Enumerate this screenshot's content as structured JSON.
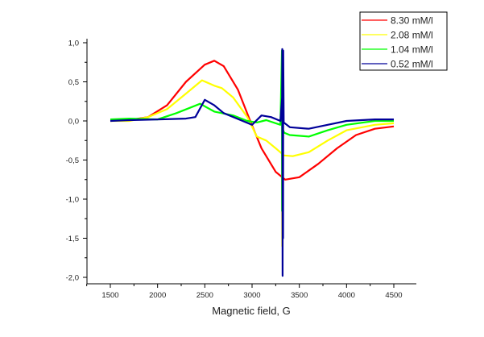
{
  "chart_data": {
    "type": "line",
    "title": "",
    "xlabel": "Magnetic field, G",
    "ylabel": "",
    "xlim": [
      1250,
      4730
    ],
    "ylim": [
      -2.08,
      1.02
    ],
    "xticks": [
      1500,
      2000,
      2500,
      3000,
      3500,
      4000,
      4500
    ],
    "xtick_labels": [
      "1500",
      "2000",
      "2500",
      "3000",
      "3500",
      "4000",
      "4500"
    ],
    "yticks": [
      -2.0,
      -1.5,
      -1.0,
      -0.5,
      0.0,
      0.5,
      1.0
    ],
    "ytick_labels": [
      "-2,0",
      "-1,5",
      "-1,0",
      "-0,5",
      "0,0",
      "0,5",
      "1,0"
    ],
    "grid": false,
    "legend_position": "top-right",
    "series": [
      {
        "name": "8.30 mM/l",
        "color": "#ff0000",
        "x": [
          1500,
          1700,
          1900,
          2100,
          2300,
          2500,
          2600,
          2700,
          2850,
          2980,
          3100,
          3250,
          3350,
          3500,
          3700,
          3900,
          4100,
          4300,
          4500
        ],
        "y": [
          0,
          0.01,
          0.05,
          0.2,
          0.5,
          0.72,
          0.77,
          0.7,
          0.4,
          0.0,
          -0.35,
          -0.65,
          -0.75,
          -0.72,
          -0.55,
          -0.35,
          -0.18,
          -0.1,
          -0.07
        ]
      },
      {
        "name": "2.08 mM/l",
        "color": "#ffff00",
        "x": [
          1500,
          1700,
          1900,
          2100,
          2300,
          2470,
          2600,
          2680,
          2800,
          2950,
          3050,
          3150,
          3250,
          3318,
          3320,
          3322,
          3330,
          3430,
          3600,
          3800,
          4000,
          4300,
          4500
        ],
        "y": [
          0,
          0.0,
          0.05,
          0.15,
          0.35,
          0.52,
          0.45,
          0.42,
          0.3,
          0.05,
          -0.2,
          -0.25,
          -0.35,
          -0.42,
          -1.6,
          -0.4,
          -0.44,
          -0.45,
          -0.4,
          -0.25,
          -0.12,
          -0.05,
          -0.03
        ]
      },
      {
        "name": "1.04 mM/l",
        "color": "#00ff00",
        "x": [
          1500,
          1700,
          2000,
          2200,
          2450,
          2600,
          2800,
          2950,
          3050,
          3150,
          3300,
          3316,
          3318,
          3320,
          3322,
          3340,
          3400,
          3600,
          3800,
          4000,
          4300,
          4500
        ],
        "y": [
          0.02,
          0.03,
          0.02,
          0.1,
          0.22,
          0.12,
          0.07,
          0.0,
          -0.02,
          0.01,
          -0.05,
          0.9,
          -1.15,
          0.2,
          -0.1,
          -0.15,
          -0.18,
          -0.2,
          -0.12,
          -0.05,
          0.0,
          0.0
        ]
      },
      {
        "name": "0.52 mM/l",
        "color": "#000099",
        "x": [
          1500,
          1700,
          2000,
          2300,
          2400,
          2500,
          2600,
          2700,
          2900,
          3000,
          3100,
          3200,
          3300,
          3318,
          3320,
          3323,
          3325,
          3328,
          3330,
          3335,
          3400,
          3600,
          3800,
          4000,
          4300,
          4500
        ],
        "y": [
          0,
          0.01,
          0.02,
          0.03,
          0.05,
          0.27,
          0.2,
          0.1,
          0.0,
          -0.05,
          0.07,
          0.05,
          0.0,
          0.3,
          0.92,
          -1.98,
          0.6,
          -1.5,
          0.9,
          -0.02,
          -0.08,
          -0.1,
          -0.05,
          0.0,
          0.02,
          0.02
        ]
      }
    ]
  }
}
